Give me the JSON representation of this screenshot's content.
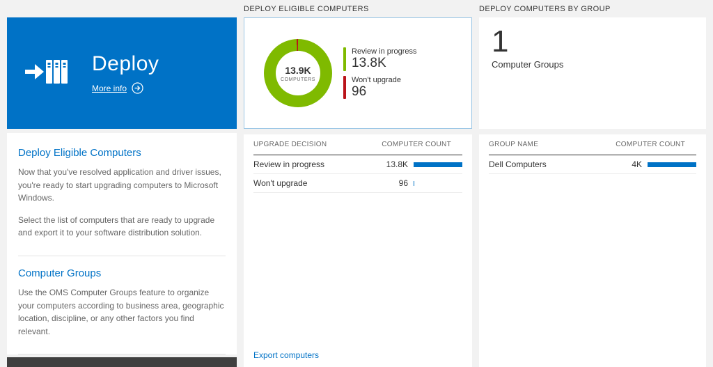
{
  "colors": {
    "accent_blue": "#0072c6",
    "green": "#7fba00",
    "red": "#ba141a",
    "bar_blue": "#0072c6"
  },
  "left": {
    "tile": {
      "title": "Deploy",
      "more_info_label": "More info"
    },
    "sections": [
      {
        "heading": "Deploy Eligible Computers",
        "paragraphs": [
          "Now that you've resolved application and driver issues, you're ready to start upgrading computers to Microsoft Windows.",
          "Select the list of computers that are ready to upgrade and export it to your software distribution solution."
        ]
      },
      {
        "heading": "Computer Groups",
        "paragraphs": [
          "Use the OMS Computer Groups feature to organize your computers according to business area, geographic location, discipline, or any other factors you find relevant."
        ]
      }
    ]
  },
  "middle": {
    "header": "DEPLOY ELIGIBLE COMPUTERS",
    "donut": {
      "center_value": "13.9K",
      "center_label": "COMPUTERS"
    },
    "legend": [
      {
        "label": "Review in progress",
        "value": "13.8K"
      },
      {
        "label": "Won't upgrade",
        "value": "96"
      }
    ],
    "table": {
      "columns": [
        "UPGRADE DECISION",
        "COMPUTER COUNT"
      ],
      "rows": [
        {
          "label": "Review in progress",
          "value": "13.8K",
          "bar_pct": 100
        },
        {
          "label": "Won't upgrade",
          "value": "96",
          "bar_pct": 1
        }
      ]
    },
    "export_label": "Export computers"
  },
  "right": {
    "header": "DEPLOY COMPUTERS BY GROUP",
    "summary": {
      "value": "1",
      "label": "Computer Groups"
    },
    "table": {
      "columns": [
        "GROUP NAME",
        "COMPUTER COUNT"
      ],
      "rows": [
        {
          "label": "Dell Computers",
          "value": "4K",
          "bar_pct": 100
        }
      ]
    }
  },
  "chart_data": {
    "type": "pie",
    "title": "Deploy Eligible Computers",
    "center_value": "13.9K",
    "center_label": "COMPUTERS",
    "segments": [
      {
        "label": "Review in progress",
        "value": 13800,
        "display": "13.8K",
        "color": "#7fba00"
      },
      {
        "label": "Won't upgrade",
        "value": 96,
        "display": "96",
        "color": "#ba141a"
      }
    ],
    "legend_position": "right"
  }
}
